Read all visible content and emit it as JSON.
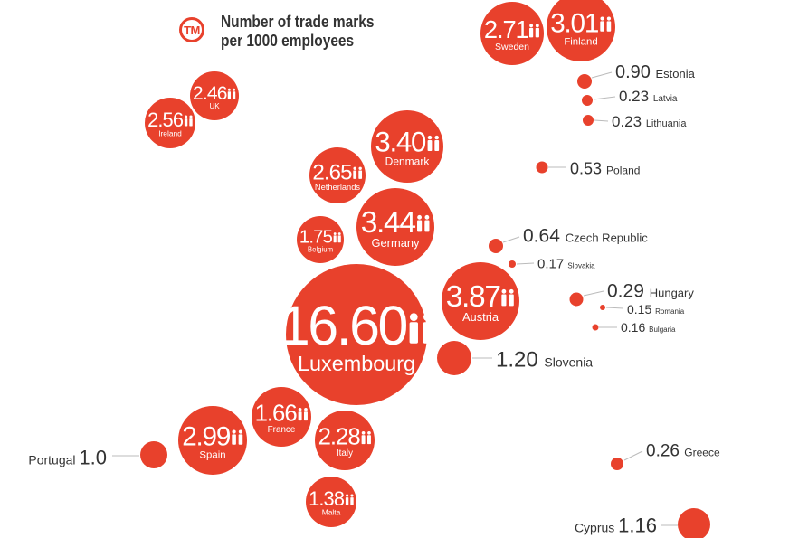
{
  "header": {
    "badge_label": "TM",
    "title_line1": "Number of trade marks",
    "title_line2": "per 1000 employees"
  },
  "colors": {
    "accent": "#e8412c",
    "text": "#333333",
    "leader": "#bbbbbb"
  },
  "chart_data": {
    "type": "bubble",
    "title": "Number of trade marks per 1000 employees",
    "series": [
      {
        "country": "Luxembourg",
        "label": "16.60",
        "value": 16.6,
        "style": "inside"
      },
      {
        "country": "Austria",
        "label": "3.87",
        "value": 3.87,
        "style": "inside"
      },
      {
        "country": "Germany",
        "label": "3.44",
        "value": 3.44,
        "style": "inside"
      },
      {
        "country": "Denmark",
        "label": "3.40",
        "value": 3.4,
        "style": "inside"
      },
      {
        "country": "Finland",
        "label": "3.01",
        "value": 3.01,
        "style": "inside"
      },
      {
        "country": "Spain",
        "label": "2.99",
        "value": 2.99,
        "style": "inside"
      },
      {
        "country": "Sweden",
        "label": "2.71",
        "value": 2.71,
        "style": "inside"
      },
      {
        "country": "Netherlands",
        "label": "2.65",
        "value": 2.65,
        "style": "inside"
      },
      {
        "country": "Ireland",
        "label": "2.56",
        "value": 2.56,
        "style": "inside"
      },
      {
        "country": "UK",
        "label": "2.46",
        "value": 2.46,
        "style": "inside"
      },
      {
        "country": "Italy",
        "label": "2.28",
        "value": 2.28,
        "style": "inside"
      },
      {
        "country": "Belgium",
        "label": "1.75",
        "value": 1.75,
        "style": "inside"
      },
      {
        "country": "France",
        "label": "1.66",
        "value": 1.66,
        "style": "inside"
      },
      {
        "country": "Malta",
        "label": "1.38",
        "value": 1.38,
        "style": "inside"
      },
      {
        "country": "Slovenia",
        "label": "1.20",
        "value": 1.2,
        "style": "right"
      },
      {
        "country": "Cyprus",
        "label": "1.16",
        "value": 1.16,
        "style": "left"
      },
      {
        "country": "Portugal",
        "label": "1.0",
        "value": 1.0,
        "style": "left"
      },
      {
        "country": "Estonia",
        "label": "0.90",
        "value": 0.9,
        "style": "right"
      },
      {
        "country": "Czech Republic",
        "label": "0.64",
        "value": 0.64,
        "style": "right"
      },
      {
        "country": "Poland",
        "label": "0.53",
        "value": 0.53,
        "style": "right"
      },
      {
        "country": "Hungary",
        "label": "0.29",
        "value": 0.29,
        "style": "right"
      },
      {
        "country": "Greece",
        "label": "0.26",
        "value": 0.26,
        "style": "right"
      },
      {
        "country": "Latvia",
        "label": "0.23",
        "value": 0.23,
        "style": "right"
      },
      {
        "country": "Lithuania",
        "label": "0.23",
        "value": 0.23,
        "style": "right"
      },
      {
        "country": "Slovakia",
        "label": "0.17",
        "value": 0.17,
        "style": "right"
      },
      {
        "country": "Bulgaria",
        "label": "0.16",
        "value": 0.16,
        "style": "right"
      },
      {
        "country": "Romania",
        "label": "0.15",
        "value": 0.15,
        "style": "right"
      }
    ]
  }
}
